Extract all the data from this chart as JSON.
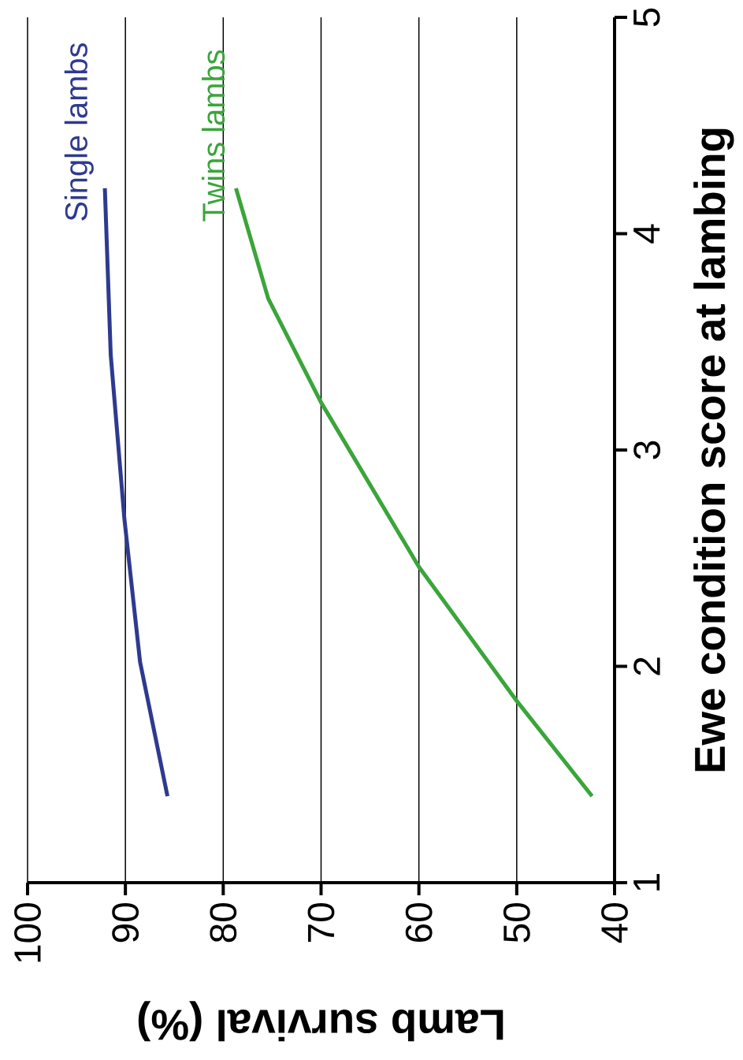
{
  "chart_data": {
    "type": "line",
    "xlabel": "Lamb survival (%)",
    "ylabel": "Ewe condition score at lambing",
    "xlim": [
      100,
      40
    ],
    "ylim": [
      1,
      5
    ],
    "xticks": [
      100,
      90,
      80,
      70,
      60,
      50,
      40
    ],
    "yticks": [
      1,
      2,
      3,
      4,
      5
    ],
    "grid": "x",
    "line_style": "solid",
    "series": [
      {
        "name": "Single lambs",
        "color": "#2e3a8f",
        "x": [
          85.7,
          88.5,
          90.1,
          91.5,
          92.1
        ],
        "values": [
          1.4,
          2.02,
          2.68,
          3.44,
          4.21
        ]
      },
      {
        "name": "Twins lambs",
        "color": "#3aa53a",
        "x": [
          42.3,
          50,
          60,
          70,
          75.4,
          78.7
        ],
        "values": [
          1.4,
          1.84,
          2.46,
          3.22,
          3.7,
          4.21
        ]
      }
    ]
  }
}
